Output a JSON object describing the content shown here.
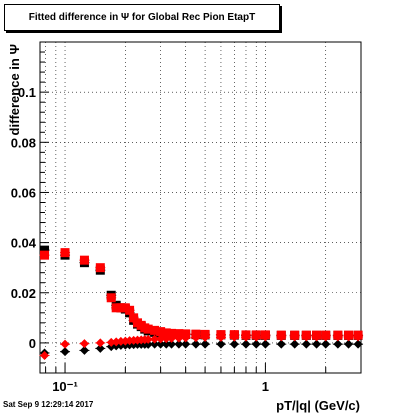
{
  "chart_data": {
    "type": "scatter",
    "title": "Fitted difference in  Ψ  for Global Rec Pion EtapT",
    "xlabel": "pT/|q| (GeV/c)",
    "ylabel": "difference in  Ψ",
    "x_scale": "log",
    "xlim": [
      0.075,
      3.0
    ],
    "ylim": [
      -0.012,
      0.12
    ],
    "grid": true,
    "xtick_labels": [
      "10⁻¹",
      "1"
    ],
    "ytick_labels": [
      "0",
      "0.02",
      "0.04",
      "0.06",
      "0.08",
      "0.1"
    ],
    "ytick_values": [
      0,
      0.02,
      0.04,
      0.06,
      0.08,
      0.1
    ],
    "xtick_values": [
      0.1,
      1
    ],
    "colors": {
      "black": "#000000",
      "red": "#ff0000",
      "grid": "#000000"
    },
    "series": [
      {
        "marker": "square",
        "color": "#000000",
        "x": [
          0.079,
          0.1,
          0.125,
          0.15,
          0.17,
          0.18,
          0.19,
          0.2,
          0.21,
          0.22,
          0.23,
          0.24,
          0.25,
          0.26,
          0.28,
          0.3,
          0.32,
          0.34,
          0.37,
          0.4,
          0.45,
          0.5,
          0.6,
          0.7,
          0.8,
          0.9,
          1.0,
          1.2,
          1.4,
          1.6,
          1.8,
          2.0,
          2.3,
          2.6,
          2.9
        ],
        "y": [
          0.037,
          0.035,
          0.032,
          0.029,
          0.019,
          0.015,
          0.014,
          0.0135,
          0.012,
          0.009,
          0.0075,
          0.0065,
          0.0055,
          0.0048,
          0.0042,
          0.004,
          0.0038,
          0.0036,
          0.0035,
          0.0034,
          0.0033,
          0.0032,
          0.0032,
          0.0031,
          0.003,
          0.003,
          0.003,
          0.003,
          0.003,
          0.003,
          0.003,
          0.003,
          0.003,
          0.003,
          0.003
        ]
      },
      {
        "marker": "square",
        "color": "#ff0000",
        "x": [
          0.079,
          0.1,
          0.125,
          0.15,
          0.17,
          0.18,
          0.19,
          0.2,
          0.21,
          0.22,
          0.23,
          0.24,
          0.25,
          0.26,
          0.28,
          0.3,
          0.32,
          0.34,
          0.37,
          0.4,
          0.45,
          0.5,
          0.6,
          0.7,
          0.8,
          0.9,
          1.0,
          1.2,
          1.4,
          1.6,
          1.8,
          2.0,
          2.3,
          2.6,
          2.9
        ],
        "y": [
          0.035,
          0.036,
          0.033,
          0.03,
          0.018,
          0.014,
          0.014,
          0.014,
          0.013,
          0.01,
          0.008,
          0.007,
          0.006,
          0.0055,
          0.005,
          0.0045,
          0.004,
          0.0038,
          0.0037,
          0.0036,
          0.0035,
          0.0034,
          0.0033,
          0.0033,
          0.0032,
          0.0032,
          0.0032,
          0.0031,
          0.0031,
          0.0031,
          0.0031,
          0.0031,
          0.0031,
          0.0031,
          0.0031
        ]
      },
      {
        "marker": "diamond",
        "color": "#000000",
        "x": [
          0.079,
          0.1,
          0.125,
          0.15,
          0.17,
          0.18,
          0.19,
          0.2,
          0.21,
          0.22,
          0.23,
          0.24,
          0.25,
          0.26,
          0.28,
          0.3,
          0.32,
          0.34,
          0.37,
          0.4,
          0.45,
          0.5,
          0.6,
          0.7,
          0.8,
          0.9,
          1.0,
          1.2,
          1.4,
          1.6,
          1.8,
          2.0,
          2.3,
          2.6,
          2.9
        ],
        "y": [
          -0.004,
          -0.0035,
          -0.003,
          -0.0022,
          -0.0015,
          -0.0012,
          -0.001,
          -0.0009,
          -0.0008,
          -0.0007,
          -0.0006,
          -0.0006,
          -0.0006,
          -0.0006,
          -0.0005,
          -0.0005,
          -0.0005,
          -0.0005,
          -0.0005,
          -0.0005,
          -0.0005,
          -0.0005,
          -0.0005,
          -0.0005,
          -0.0005,
          -0.0005,
          -0.0005,
          -0.0005,
          -0.0005,
          -0.0005,
          -0.0005,
          -0.0005,
          -0.0005,
          -0.0005,
          -0.0005
        ]
      },
      {
        "marker": "diamond",
        "color": "#ff0000",
        "x": [
          0.079,
          0.1,
          0.125,
          0.15,
          0.17,
          0.18,
          0.19,
          0.2,
          0.21,
          0.22,
          0.23,
          0.24,
          0.25,
          0.26,
          0.28,
          0.3,
          0.32,
          0.34,
          0.37,
          0.4,
          0.45,
          0.5,
          0.6,
          0.7,
          0.8,
          0.9,
          1.0,
          1.2,
          1.4,
          1.6,
          1.8,
          2.0,
          2.3,
          2.6,
          2.9
        ],
        "y": [
          -0.005,
          -0.0005,
          -0.0003,
          0.0,
          0.0002,
          0.0004,
          0.0006,
          0.0007,
          0.0009,
          0.001,
          0.0011,
          0.0012,
          0.0013,
          0.0014,
          0.0015,
          0.0016,
          0.0017,
          0.0018,
          0.0019,
          0.002,
          0.0021,
          0.0022,
          0.0022,
          0.0023,
          0.0023,
          0.0023,
          0.0024,
          0.0024,
          0.0024,
          0.0024,
          0.0024,
          0.0024,
          0.0024,
          0.0024,
          0.0024
        ]
      }
    ]
  },
  "footer": {
    "datestamp": "Sat Sep  9 12:29:14 2017"
  }
}
